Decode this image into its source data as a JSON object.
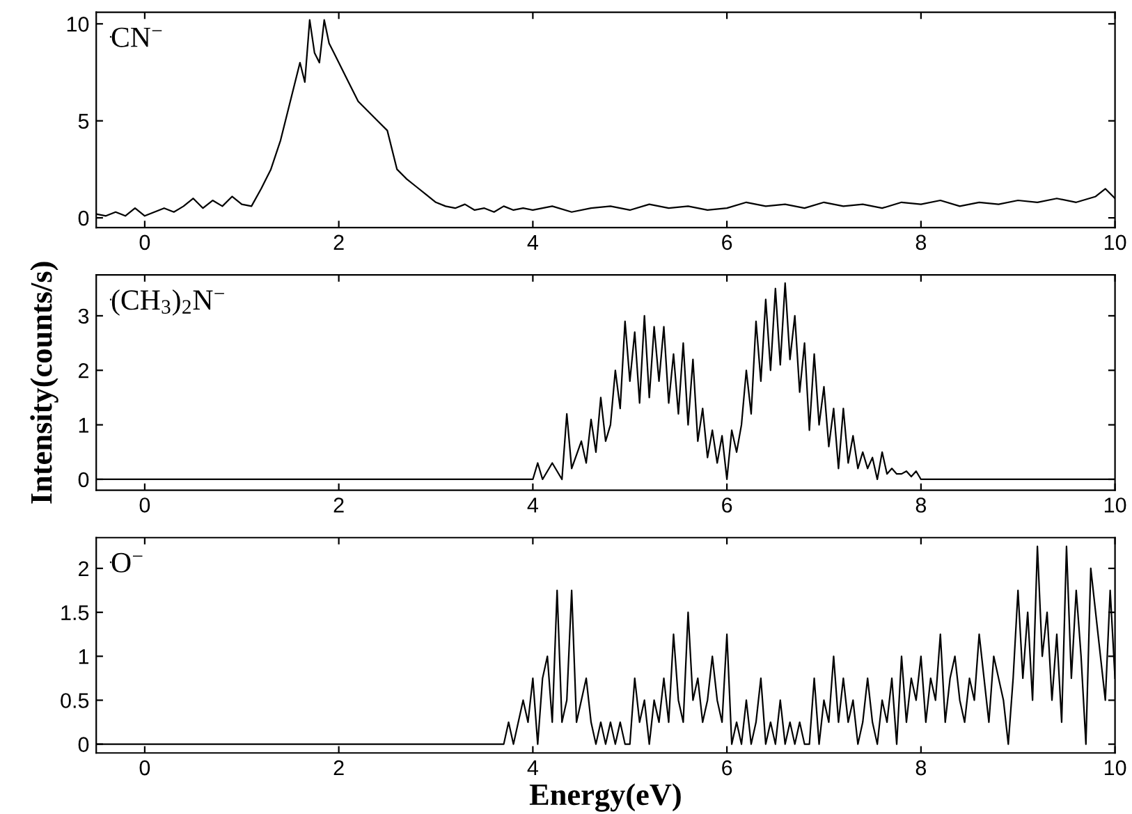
{
  "chart_data": [
    {
      "type": "line",
      "xlim": [
        -0.5,
        10
      ],
      "xticks": [
        0,
        2,
        4,
        6,
        8,
        10
      ],
      "ylim": [
        -0.5,
        10.6
      ],
      "yticks": [
        0,
        5,
        10
      ],
      "grid": false,
      "legend": "top left",
      "marker": "none",
      "line_style": "solid",
      "series": [
        {
          "name": "CN$^{−}$",
          "color": "#000000",
          "x": [
            -0.5,
            -0.4,
            -0.3,
            -0.2,
            -0.1,
            0,
            0.1,
            0.2,
            0.3,
            0.4,
            0.5,
            0.6,
            0.7,
            0.8,
            0.9,
            1.0,
            1.1,
            1.2,
            1.3,
            1.4,
            1.5,
            1.6,
            1.65,
            1.7,
            1.75,
            1.8,
            1.85,
            1.9,
            1.95,
            2.0,
            2.1,
            2.2,
            2.3,
            2.4,
            2.5,
            2.6,
            2.7,
            2.8,
            2.9,
            3.0,
            3.1,
            3.2,
            3.3,
            3.4,
            3.5,
            3.6,
            3.7,
            3.8,
            3.9,
            4.0,
            4.2,
            4.4,
            4.6,
            4.8,
            5.0,
            5.2,
            5.4,
            5.6,
            5.8,
            6.0,
            6.2,
            6.4,
            6.6,
            6.8,
            7.0,
            7.2,
            7.4,
            7.6,
            7.8,
            8.0,
            8.2,
            8.4,
            8.6,
            8.8,
            9.0,
            9.2,
            9.4,
            9.6,
            9.8,
            9.9,
            10.0
          ],
          "values": [
            0.2,
            0.1,
            0.3,
            0.1,
            0.5,
            0.1,
            0.3,
            0.5,
            0.3,
            0.6,
            1.0,
            0.5,
            0.9,
            0.6,
            1.1,
            0.7,
            0.6,
            1.5,
            2.5,
            4.0,
            6.0,
            8.0,
            7.0,
            10.2,
            8.5,
            8.0,
            10.2,
            9.0,
            8.5,
            8.0,
            7.0,
            6.0,
            5.5,
            5.0,
            4.5,
            2.5,
            2.0,
            1.6,
            1.2,
            0.8,
            0.6,
            0.5,
            0.7,
            0.4,
            0.5,
            0.3,
            0.6,
            0.4,
            0.5,
            0.4,
            0.6,
            0.3,
            0.5,
            0.6,
            0.4,
            0.7,
            0.5,
            0.6,
            0.4,
            0.5,
            0.8,
            0.6,
            0.7,
            0.5,
            0.8,
            0.6,
            0.7,
            0.5,
            0.8,
            0.7,
            0.9,
            0.6,
            0.8,
            0.7,
            0.9,
            0.8,
            1.0,
            0.8,
            1.1,
            1.5,
            1.0
          ]
        }
      ]
    },
    {
      "type": "line",
      "xlim": [
        -0.5,
        10
      ],
      "xticks": [
        0,
        2,
        4,
        6,
        8,
        10
      ],
      "ylim": [
        -0.2,
        3.75
      ],
      "yticks": [
        0,
        1,
        2,
        3
      ],
      "grid": false,
      "legend": "top left",
      "marker": "none",
      "line_style": "solid",
      "ylabel": "Intensity(counts/s)",
      "series": [
        {
          "name": "(CH$_{3}$)$_{2}$N$^{−}$",
          "color": "#000000",
          "x": [
            -0.5,
            4.0,
            4.05,
            4.1,
            4.2,
            4.3,
            4.35,
            4.4,
            4.5,
            4.55,
            4.6,
            4.65,
            4.7,
            4.75,
            4.8,
            4.85,
            4.9,
            4.95,
            5.0,
            5.05,
            5.1,
            5.15,
            5.2,
            5.25,
            5.3,
            5.35,
            5.4,
            5.45,
            5.5,
            5.55,
            5.6,
            5.65,
            5.7,
            5.75,
            5.8,
            5.85,
            5.9,
            5.95,
            6.0,
            6.05,
            6.1,
            6.15,
            6.2,
            6.25,
            6.3,
            6.35,
            6.4,
            6.45,
            6.5,
            6.55,
            6.6,
            6.65,
            6.7,
            6.75,
            6.8,
            6.85,
            6.9,
            6.95,
            7.0,
            7.05,
            7.1,
            7.15,
            7.2,
            7.25,
            7.3,
            7.35,
            7.4,
            7.45,
            7.5,
            7.55,
            7.6,
            7.65,
            7.7,
            7.75,
            7.8,
            7.85,
            7.9,
            7.95,
            8.0,
            10.0
          ],
          "values": [
            0,
            0,
            0.3,
            0,
            0.3,
            0,
            1.2,
            0.2,
            0.7,
            0.3,
            1.1,
            0.5,
            1.5,
            0.7,
            1.0,
            2.0,
            1.3,
            2.9,
            1.8,
            2.7,
            1.4,
            3.0,
            1.5,
            2.8,
            1.8,
            2.8,
            1.4,
            2.3,
            1.2,
            2.5,
            1.0,
            2.2,
            0.7,
            1.3,
            0.4,
            0.9,
            0.3,
            0.8,
            0,
            0.9,
            0.5,
            1.0,
            2.0,
            1.2,
            2.9,
            1.8,
            3.3,
            2.0,
            3.5,
            2.1,
            3.6,
            2.2,
            3.0,
            1.6,
            2.5,
            0.9,
            2.3,
            1.0,
            1.7,
            0.6,
            1.3,
            0.2,
            1.3,
            0.3,
            0.8,
            0.2,
            0.5,
            0.2,
            0.4,
            0,
            0.5,
            0.1,
            0.2,
            0.1,
            0.1,
            0.15,
            0.05,
            0.15,
            0,
            0
          ]
        }
      ]
    },
    {
      "type": "line",
      "xlim": [
        -0.5,
        10
      ],
      "xticks": [
        0,
        2,
        4,
        6,
        8,
        10
      ],
      "ylim": [
        -0.1,
        2.35
      ],
      "yticks": [
        0,
        0.5,
        1,
        1.5,
        2
      ],
      "grid": false,
      "legend": "top left",
      "marker": "none",
      "line_style": "solid",
      "xlabel": "Energy(eV)",
      "series": [
        {
          "name": "O$^{−}$",
          "color": "#000000",
          "x": [
            -0.5,
            3.7,
            3.75,
            3.8,
            3.85,
            3.9,
            3.95,
            4.0,
            4.05,
            4.1,
            4.15,
            4.2,
            4.25,
            4.3,
            4.35,
            4.4,
            4.45,
            4.5,
            4.55,
            4.6,
            4.65,
            4.7,
            4.75,
            4.8,
            4.85,
            4.9,
            4.95,
            5.0,
            5.05,
            5.1,
            5.15,
            5.2,
            5.25,
            5.3,
            5.35,
            5.4,
            5.45,
            5.5,
            5.55,
            5.6,
            5.65,
            5.7,
            5.75,
            5.8,
            5.85,
            5.9,
            5.95,
            6.0,
            6.05,
            6.1,
            6.15,
            6.2,
            6.25,
            6.3,
            6.35,
            6.4,
            6.45,
            6.5,
            6.55,
            6.6,
            6.65,
            6.7,
            6.75,
            6.8,
            6.85,
            6.9,
            6.95,
            7.0,
            7.05,
            7.1,
            7.15,
            7.2,
            7.25,
            7.3,
            7.35,
            7.4,
            7.45,
            7.5,
            7.55,
            7.6,
            7.65,
            7.7,
            7.75,
            7.8,
            7.85,
            7.9,
            7.95,
            8.0,
            8.05,
            8.1,
            8.15,
            8.2,
            8.25,
            8.3,
            8.35,
            8.4,
            8.45,
            8.5,
            8.55,
            8.6,
            8.65,
            8.7,
            8.75,
            8.8,
            8.85,
            8.9,
            8.95,
            9.0,
            9.05,
            9.1,
            9.15,
            9.2,
            9.25,
            9.3,
            9.35,
            9.4,
            9.45,
            9.5,
            9.55,
            9.6,
            9.65,
            9.7,
            9.75,
            9.8,
            9.85,
            9.9,
            9.95,
            10.0
          ],
          "values": [
            0,
            0,
            0.25,
            0,
            0.25,
            0.5,
            0.25,
            0.75,
            0,
            0.75,
            1.0,
            0.25,
            1.75,
            0.25,
            0.5,
            1.75,
            0.25,
            0.5,
            0.75,
            0.25,
            0,
            0.25,
            0,
            0.25,
            0,
            0.25,
            0,
            0,
            0.75,
            0.25,
            0.5,
            0,
            0.5,
            0.25,
            0.75,
            0.25,
            1.25,
            0.5,
            0.25,
            1.5,
            0.5,
            0.75,
            0.25,
            0.5,
            1.0,
            0.5,
            0.25,
            1.25,
            0,
            0.25,
            0,
            0.5,
            0,
            0.25,
            0.75,
            0,
            0.25,
            0,
            0.5,
            0,
            0.25,
            0,
            0.25,
            0,
            0,
            0.75,
            0,
            0.5,
            0.25,
            1.0,
            0.25,
            0.75,
            0.25,
            0.5,
            0,
            0.25,
            0.75,
            0.25,
            0,
            0.5,
            0.25,
            0.75,
            0,
            1.0,
            0.25,
            0.75,
            0.5,
            1.0,
            0.25,
            0.75,
            0.5,
            1.25,
            0.25,
            0.75,
            1.0,
            0.5,
            0.25,
            0.75,
            0.5,
            1.25,
            0.75,
            0.25,
            1.0,
            0.75,
            0.5,
            0,
            0.75,
            1.75,
            0.75,
            1.5,
            0.5,
            2.25,
            1.0,
            1.5,
            0.5,
            1.25,
            0.25,
            2.25,
            0.75,
            1.75,
            1.0,
            0,
            2.0,
            1.5,
            1.0,
            0.5,
            1.75,
            0.75
          ]
        }
      ]
    }
  ]
}
